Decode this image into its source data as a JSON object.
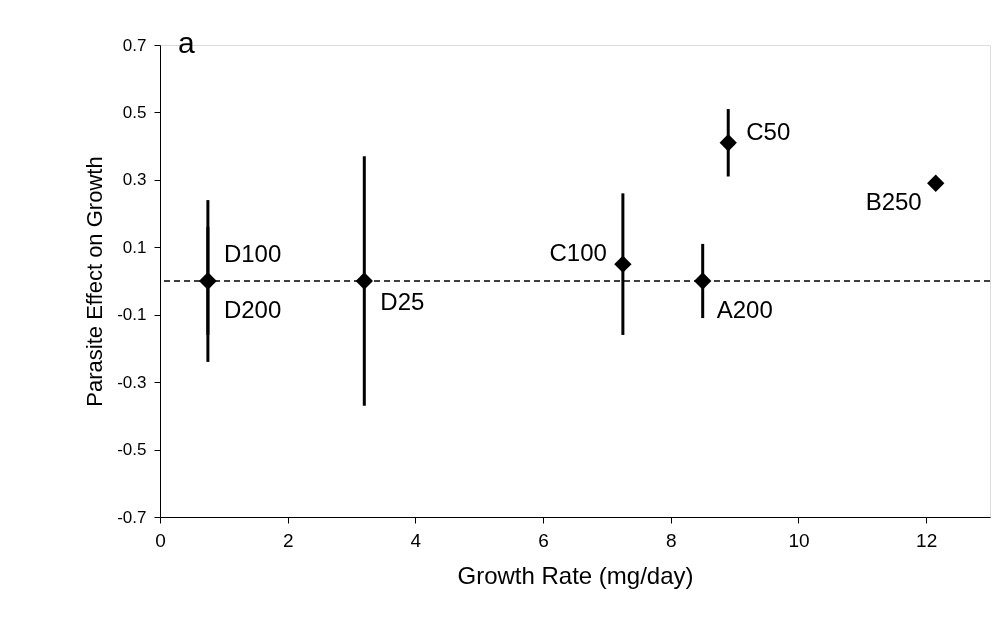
{
  "chart_data": {
    "type": "scatter",
    "xlabel": "Growth Rate (mg/day)",
    "ylabel": "Parasite Effect on Growth",
    "x": [
      0.75,
      0.75,
      3.2,
      7.25,
      8.5,
      8.9,
      12.15
    ],
    "series": [
      {
        "color": "#000000",
        "values": [
          0,
          0,
          0,
          0.05,
          0,
          0.41,
          0.29
        ],
        "errors": [
          0.16,
          0.24,
          0.37,
          0.21,
          0.11,
          0.1,
          null
        ]
      }
    ],
    "xlim": [
      0,
      13
    ],
    "xticks": [
      0,
      2,
      4,
      6,
      8,
      10,
      12
    ],
    "ylim": [
      -0.7,
      0.7
    ],
    "yticks": [
      -0.7,
      -0.5,
      -0.3,
      -0.1,
      0.1,
      0.3,
      0.5,
      0.7
    ],
    "marker": "diamond",
    "grid": false,
    "ref_lines": [
      {
        "axis": "y",
        "value": 0,
        "line_style": "dashed",
        "color": "#000000"
      }
    ],
    "annotations": [
      "a",
      {
        "text": "D100",
        "x": 0.75,
        "y": 0
      },
      {
        "text": "D200",
        "x": 0.75,
        "y": 0
      },
      {
        "text": "D25",
        "x": 3.2,
        "y": 0
      },
      {
        "text": "C100",
        "x": 7.25,
        "y": 0.05
      },
      {
        "text": "A200",
        "x": 8.5,
        "y": 0
      },
      {
        "text": "C50",
        "x": 8.9,
        "y": 0.41
      },
      {
        "text": "B250",
        "x": 12.15,
        "y": 0.29
      }
    ]
  }
}
